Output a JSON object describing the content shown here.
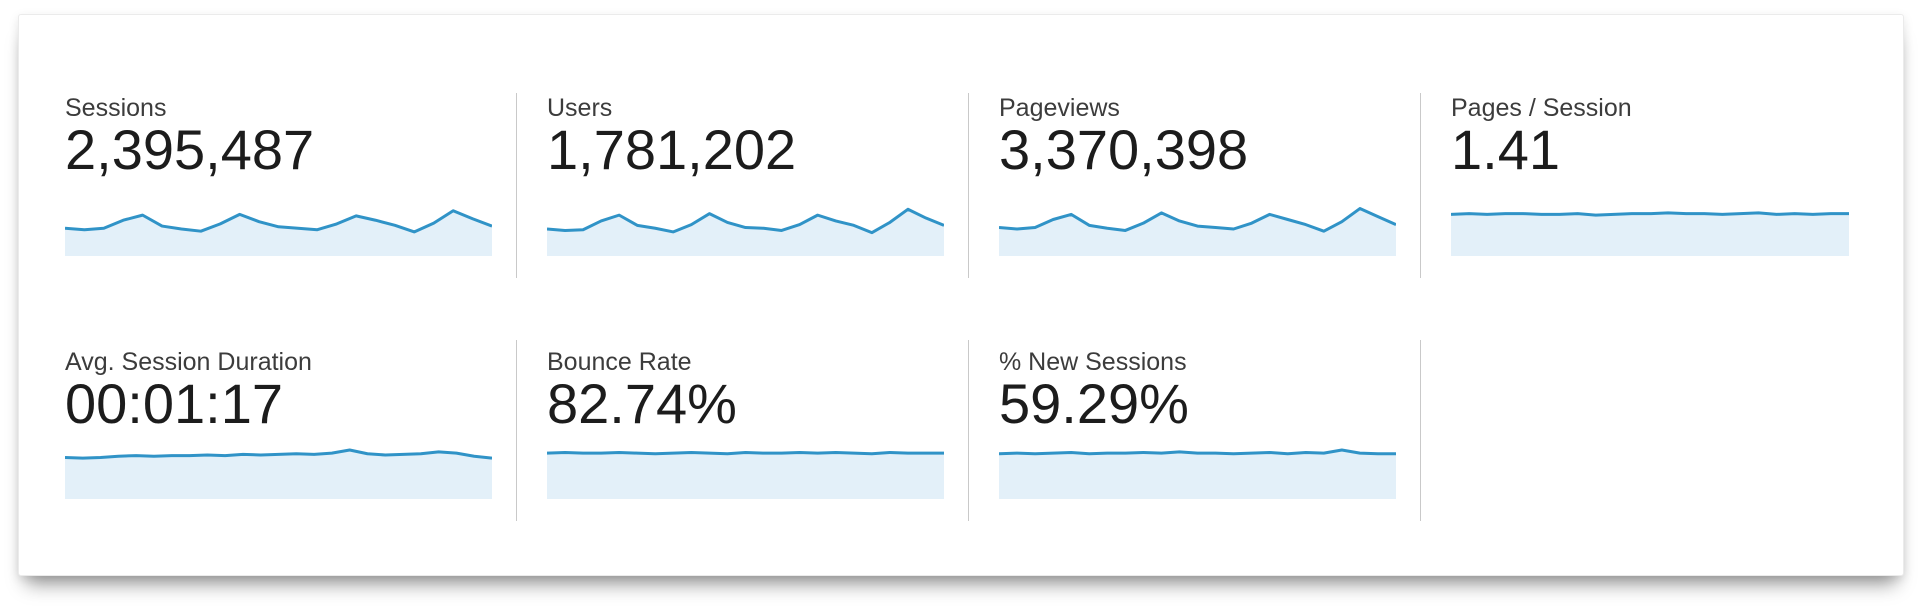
{
  "style": {
    "sparkline_line_color": "#3093c7",
    "sparkline_fill_color": "#e3f0f9",
    "divider_color": "#c9c9c9",
    "panel_background": "#ffffff"
  },
  "chart_data": [
    {
      "type": "area",
      "title": "Sessions",
      "value": "2,395,487",
      "legend_position": "none",
      "grid": false
    },
    {
      "type": "area",
      "title": "Users",
      "value": "1,781,202",
      "legend_position": "none",
      "grid": false
    },
    {
      "type": "area",
      "title": "Pageviews",
      "value": "3,370,398",
      "legend_position": "none",
      "grid": false
    },
    {
      "type": "area",
      "title": "Pages / Session",
      "value": "1.41",
      "legend_position": "none",
      "grid": false
    },
    {
      "type": "area",
      "title": "Avg. Session Duration",
      "value": "00:01:17",
      "legend_position": "none",
      "grid": false
    },
    {
      "type": "area",
      "title": "Bounce Rate",
      "value": "82.74%",
      "legend_position": "none",
      "grid": false
    },
    {
      "type": "area",
      "title": "% New Sessions",
      "value": "59.29%",
      "legend_position": "none",
      "grid": false
    }
  ],
  "rows": [
    {
      "cards": [
        {
          "label": "Sessions",
          "value": "2,395,487",
          "sparkline": {
            "points": [
              0.62,
              0.64,
              0.62,
              0.51,
              0.44,
              0.59,
              0.63,
              0.66,
              0.56,
              0.43,
              0.53,
              0.6,
              0.62,
              0.64,
              0.56,
              0.45,
              0.51,
              0.58,
              0.67,
              0.55,
              0.38,
              0.49,
              0.59
            ]
          }
        },
        {
          "label": "Users",
          "value": "1,781,202",
          "sparkline": {
            "points": [
              0.63,
              0.65,
              0.64,
              0.52,
              0.44,
              0.58,
              0.62,
              0.67,
              0.57,
              0.42,
              0.54,
              0.61,
              0.62,
              0.65,
              0.57,
              0.44,
              0.52,
              0.58,
              0.68,
              0.54,
              0.36,
              0.48,
              0.58
            ]
          }
        },
        {
          "label": "Pageviews",
          "value": "3,370,398",
          "sparkline": {
            "points": [
              0.61,
              0.63,
              0.61,
              0.5,
              0.43,
              0.58,
              0.62,
              0.65,
              0.55,
              0.41,
              0.52,
              0.59,
              0.61,
              0.63,
              0.55,
              0.43,
              0.5,
              0.57,
              0.66,
              0.53,
              0.35,
              0.46,
              0.57
            ]
          }
        },
        {
          "label": "Pages / Session",
          "value": "1.41",
          "sparkline": {
            "points": [
              0.43,
              0.42,
              0.43,
              0.42,
              0.42,
              0.43,
              0.43,
              0.42,
              0.44,
              0.43,
              0.42,
              0.42,
              0.41,
              0.42,
              0.42,
              0.43,
              0.42,
              0.41,
              0.43,
              0.42,
              0.43,
              0.42,
              0.42
            ]
          }
        }
      ]
    },
    {
      "cards": [
        {
          "label": "Avg. Session Duration",
          "value": "00:01:17",
          "sparkline": {
            "points": [
              0.33,
              0.34,
              0.33,
              0.31,
              0.3,
              0.31,
              0.3,
              0.3,
              0.29,
              0.3,
              0.28,
              0.29,
              0.28,
              0.27,
              0.28,
              0.26,
              0.21,
              0.27,
              0.29,
              0.28,
              0.27,
              0.24,
              0.26,
              0.31,
              0.34
            ]
          }
        },
        {
          "label": "Bounce Rate",
          "value": "82.74%",
          "sparkline": {
            "points": [
              0.26,
              0.25,
              0.26,
              0.26,
              0.25,
              0.26,
              0.27,
              0.26,
              0.25,
              0.26,
              0.27,
              0.25,
              0.26,
              0.26,
              0.25,
              0.26,
              0.25,
              0.26,
              0.27,
              0.25,
              0.26,
              0.26,
              0.26
            ]
          }
        },
        {
          "label": "% New Sessions",
          "value": "59.29%",
          "sparkline": {
            "points": [
              0.27,
              0.26,
              0.27,
              0.26,
              0.25,
              0.27,
              0.26,
              0.26,
              0.25,
              0.26,
              0.24,
              0.26,
              0.26,
              0.27,
              0.26,
              0.25,
              0.27,
              0.25,
              0.26,
              0.21,
              0.26,
              0.27,
              0.27
            ]
          }
        }
      ]
    }
  ]
}
